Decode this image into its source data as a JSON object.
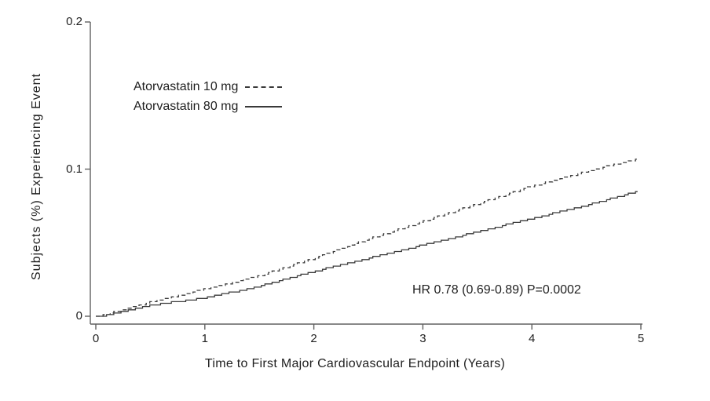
{
  "figure": {
    "background": "#ffffff"
  },
  "legend": {
    "items": [
      {
        "label": "Atorvastatin 10 mg",
        "line_style": "dashed"
      },
      {
        "label": "Atorvastatin 80 mg",
        "line_style": "solid"
      }
    ]
  },
  "chart_data": {
    "type": "line",
    "subtype": "kaplan-meier-cumulative-incidence",
    "title": "",
    "xlabel": "Time to First Major Cardiovascular Endpoint (Years)",
    "ylabel": "Subjects (%) Experiencing Event",
    "xlim": [
      0,
      5
    ],
    "ylim": [
      0,
      0.2
    ],
    "x_ticks": [
      0,
      1,
      2,
      3,
      4,
      5
    ],
    "y_ticks": [
      0,
      0.1,
      0.2
    ],
    "y_tick_labels": [
      "0",
      "0.1",
      "0.2"
    ],
    "grid": false,
    "legend_position": "upper-left-inside",
    "x": [
      0,
      0.5,
      1,
      1.5,
      2,
      2.5,
      3,
      3.5,
      4,
      4.5,
      5
    ],
    "series": [
      {
        "name": "Atorvastatin 10 mg",
        "style": "dashed",
        "values": [
          0,
          0.01,
          0.019,
          0.028,
          0.04,
          0.053,
          0.065,
          0.077,
          0.089,
          0.099,
          0.108
        ]
      },
      {
        "name": "Atorvastatin 80 mg",
        "style": "solid",
        "values": [
          0,
          0.008,
          0.013,
          0.021,
          0.031,
          0.04,
          0.049,
          0.058,
          0.067,
          0.076,
          0.086
        ]
      }
    ],
    "annotation": "HR 0.78 (0.69-0.89)  P=0.0002",
    "colors": {
      "curve": "#3a3a3a",
      "axis": "#606060",
      "text": "#1f1f1f",
      "background": "#ffffff"
    }
  }
}
